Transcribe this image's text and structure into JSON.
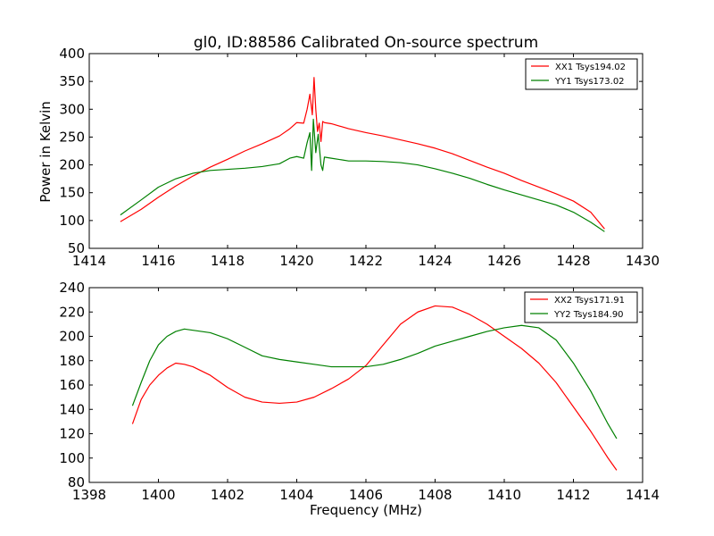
{
  "colors": {
    "xx": "#ff0000",
    "yy": "#008000"
  },
  "chart_data": [
    {
      "type": "line",
      "title": "gl0, ID:88586 Calibrated On-source spectrum",
      "xlabel": "",
      "ylabel": "Power in Kelvin",
      "xlim": [
        1414,
        1430
      ],
      "ylim": [
        50,
        400
      ],
      "xticks": [
        1414,
        1416,
        1418,
        1420,
        1422,
        1424,
        1426,
        1428,
        1430
      ],
      "yticks": [
        50,
        100,
        150,
        200,
        250,
        300,
        350,
        400
      ],
      "legend_position": "top-right",
      "series": [
        {
          "name": "XX1 Tsys194.02",
          "color": "#ff0000",
          "x": [
            1414.9,
            1415.5,
            1416.0,
            1416.5,
            1417.0,
            1417.5,
            1418.0,
            1418.5,
            1419.0,
            1419.5,
            1419.8,
            1420.0,
            1420.2,
            1420.3,
            1420.38,
            1420.45,
            1420.5,
            1420.55,
            1420.6,
            1420.65,
            1420.7,
            1420.75,
            1420.8,
            1421.0,
            1421.5,
            1422.0,
            1422.5,
            1423.0,
            1423.5,
            1424.0,
            1424.5,
            1425.0,
            1425.5,
            1426.0,
            1426.5,
            1427.0,
            1427.5,
            1428.0,
            1428.5,
            1428.9
          ],
          "y": [
            98,
            120,
            142,
            162,
            180,
            196,
            210,
            225,
            238,
            252,
            265,
            276,
            275,
            300,
            327,
            290,
            357,
            300,
            260,
            275,
            242,
            278,
            276,
            274,
            265,
            258,
            252,
            245,
            238,
            230,
            220,
            208,
            196,
            185,
            172,
            160,
            148,
            135,
            115,
            85
          ]
        },
        {
          "name": "YY1 Tsys173.02",
          "color": "#008000",
          "x": [
            1414.9,
            1415.5,
            1416.0,
            1416.5,
            1417.0,
            1417.5,
            1418.0,
            1418.5,
            1419.0,
            1419.5,
            1419.8,
            1420.0,
            1420.2,
            1420.3,
            1420.38,
            1420.43,
            1420.48,
            1420.55,
            1420.62,
            1420.7,
            1420.75,
            1420.8,
            1421.0,
            1421.5,
            1422.0,
            1422.5,
            1423.0,
            1423.5,
            1424.0,
            1424.5,
            1425.0,
            1425.5,
            1426.0,
            1426.5,
            1427.0,
            1427.5,
            1428.0,
            1428.5,
            1428.9
          ],
          "y": [
            110,
            137,
            160,
            175,
            185,
            190,
            192,
            194,
            197,
            202,
            212,
            215,
            212,
            240,
            258,
            190,
            282,
            222,
            255,
            200,
            190,
            214,
            212,
            207,
            207,
            206,
            204,
            200,
            193,
            185,
            176,
            165,
            155,
            146,
            137,
            128,
            115,
            97,
            80
          ]
        }
      ]
    },
    {
      "type": "line",
      "title": "",
      "xlabel": "Frequency (MHz)",
      "ylabel": "",
      "xlim": [
        1398,
        1414
      ],
      "ylim": [
        80,
        240
      ],
      "xticks": [
        1398,
        1400,
        1402,
        1404,
        1406,
        1408,
        1410,
        1412,
        1414
      ],
      "yticks": [
        80,
        100,
        120,
        140,
        160,
        180,
        200,
        220,
        240
      ],
      "legend_position": "top-right",
      "series": [
        {
          "name": "XX2 Tsys171.91",
          "color": "#ff0000",
          "x": [
            1399.25,
            1399.5,
            1399.75,
            1400.0,
            1400.25,
            1400.5,
            1400.75,
            1401.0,
            1401.5,
            1402.0,
            1402.5,
            1403.0,
            1403.5,
            1404.0,
            1404.5,
            1405.0,
            1405.5,
            1406.0,
            1406.5,
            1407.0,
            1407.5,
            1408.0,
            1408.5,
            1409.0,
            1409.5,
            1410.0,
            1410.5,
            1411.0,
            1411.5,
            1412.0,
            1412.5,
            1413.0,
            1413.25
          ],
          "y": [
            128,
            148,
            160,
            168,
            174,
            178,
            177,
            175,
            168,
            158,
            150,
            146,
            145,
            146,
            150,
            157,
            165,
            176,
            193,
            210,
            220,
            225,
            224,
            218,
            210,
            200,
            190,
            178,
            162,
            142,
            122,
            100,
            90
          ]
        },
        {
          "name": "YY2 Tsys184.90",
          "color": "#008000",
          "x": [
            1399.25,
            1399.5,
            1399.75,
            1400.0,
            1400.25,
            1400.5,
            1400.75,
            1401.0,
            1401.5,
            1402.0,
            1402.5,
            1403.0,
            1403.5,
            1404.0,
            1404.5,
            1405.0,
            1405.5,
            1406.0,
            1406.5,
            1407.0,
            1407.5,
            1408.0,
            1408.5,
            1409.0,
            1409.5,
            1410.0,
            1410.5,
            1411.0,
            1411.5,
            1412.0,
            1412.5,
            1413.0,
            1413.25
          ],
          "y": [
            143,
            162,
            180,
            193,
            200,
            204,
            206,
            205,
            203,
            198,
            191,
            184,
            181,
            179,
            177,
            175,
            175,
            175,
            177,
            181,
            186,
            192,
            196,
            200,
            204,
            207,
            209,
            207,
            197,
            178,
            155,
            128,
            116
          ]
        }
      ]
    }
  ]
}
